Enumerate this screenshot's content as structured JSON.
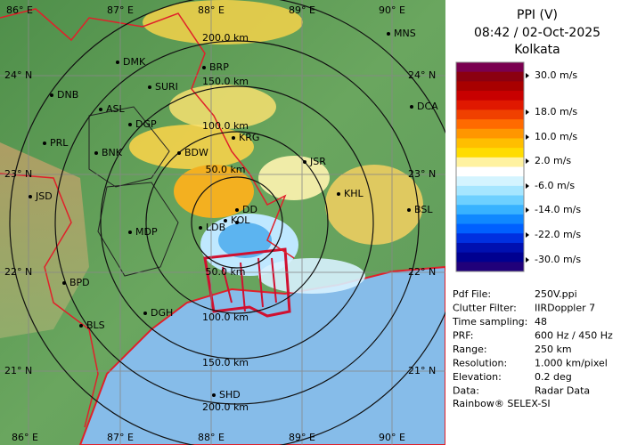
{
  "map": {
    "lon_labels": [
      "86° E",
      "87° E",
      "88° E",
      "89° E",
      "90° E"
    ],
    "lat_labels": [
      "24° N",
      "23° N",
      "22° N",
      "21° N"
    ],
    "range_labels": [
      "50.0 km",
      "100.0 km",
      "150.0 km",
      "200.0 km"
    ],
    "stations": [
      "MNS",
      "DMK",
      "BRP",
      "DNB",
      "SURI",
      "ASL",
      "DCA",
      "DGP",
      "KRG",
      "PRL",
      "BNK",
      "BDW",
      "JSR",
      "JSD",
      "KHL",
      "DD",
      "KOL",
      "BSL",
      "MDP",
      "LDB",
      "BPD",
      "DGH",
      "BLS",
      "SHD"
    ]
  },
  "panel": {
    "title": "PPI (V)",
    "time": "08:42 / 02-Oct-2025",
    "site": "Kolkata",
    "scale_labels": [
      "30.0 m/s",
      "18.0 m/s",
      "10.0 m/s",
      "2.0 m/s",
      "-6.0 m/s",
      "-14.0 m/s",
      "-22.0 m/s",
      "-30.0 m/s"
    ],
    "info": [
      [
        "Pdf File:",
        "250V.ppi"
      ],
      [
        "Clutter Filter:",
        "IIRDoppler 7"
      ],
      [
        "Time sampling:",
        "48"
      ],
      [
        "PRF:",
        "600 Hz / 450 Hz"
      ],
      [
        "Range:",
        "250 km"
      ],
      [
        "Resolution:",
        "1.000 km/pixel"
      ],
      [
        "Elevation:",
        "0.2 deg"
      ],
      [
        "Data:",
        "Radar Data"
      ]
    ],
    "footer": "Rainbow® SELEX-SI"
  }
}
